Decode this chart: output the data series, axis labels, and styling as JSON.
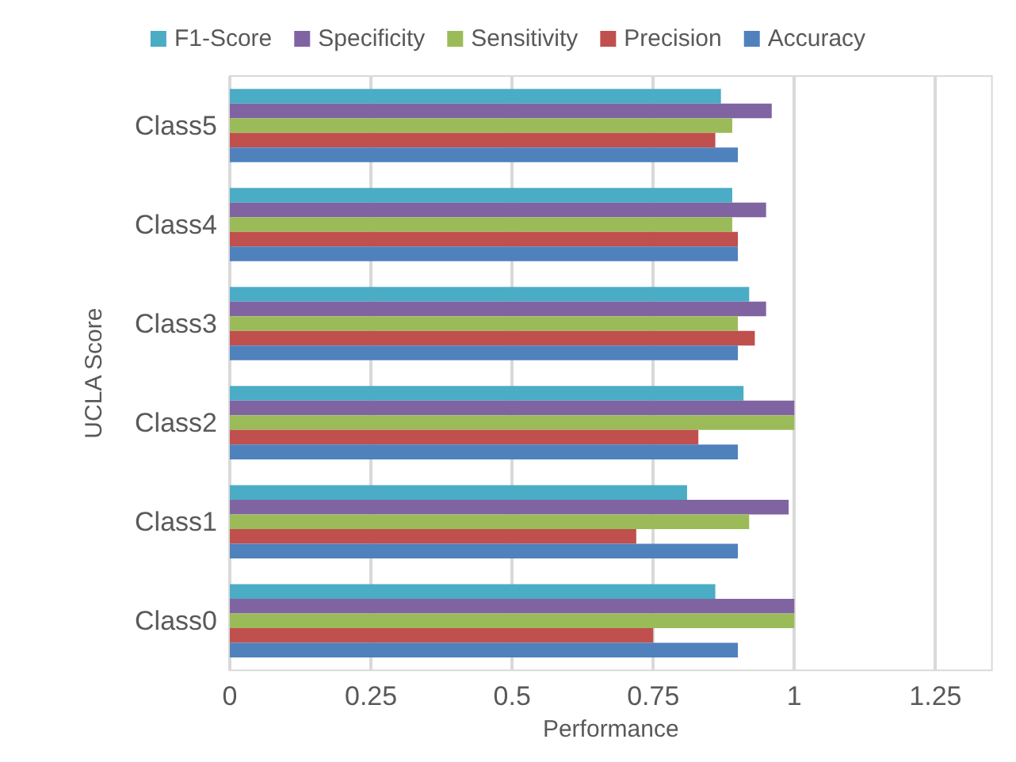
{
  "chart_data": {
    "type": "bar",
    "orientation": "horizontal",
    "xlabel": "Performance",
    "ylabel": "UCLA Score",
    "categories": [
      "Class5",
      "Class4",
      "Class3",
      "Class2",
      "Class1",
      "Class0"
    ],
    "series": [
      {
        "name": "F1-Score",
        "color": "#4bacc6",
        "values": [
          0.87,
          0.89,
          0.92,
          0.91,
          0.81,
          0.86
        ]
      },
      {
        "name": "Specificity",
        "color": "#8064a2",
        "values": [
          0.96,
          0.95,
          0.95,
          1,
          0.99,
          1
        ]
      },
      {
        "name": "Sensitivity",
        "color": "#9bbb59",
        "values": [
          0.89,
          0.89,
          0.9,
          1,
          0.92,
          1
        ]
      },
      {
        "name": "Precision",
        "color": "#c0504d",
        "values": [
          0.86,
          0.9,
          0.93,
          0.83,
          0.72,
          0.75
        ]
      },
      {
        "name": "Accuracy",
        "color": "#4f81bd",
        "values": [
          0.9,
          0.9,
          0.9,
          0.9,
          0.9,
          0.9
        ]
      }
    ],
    "xlim": [
      0,
      1.35
    ],
    "xticks": [
      0,
      0.25,
      0.5,
      0.75,
      1,
      1.25
    ],
    "grid": "x",
    "legend": "top"
  }
}
